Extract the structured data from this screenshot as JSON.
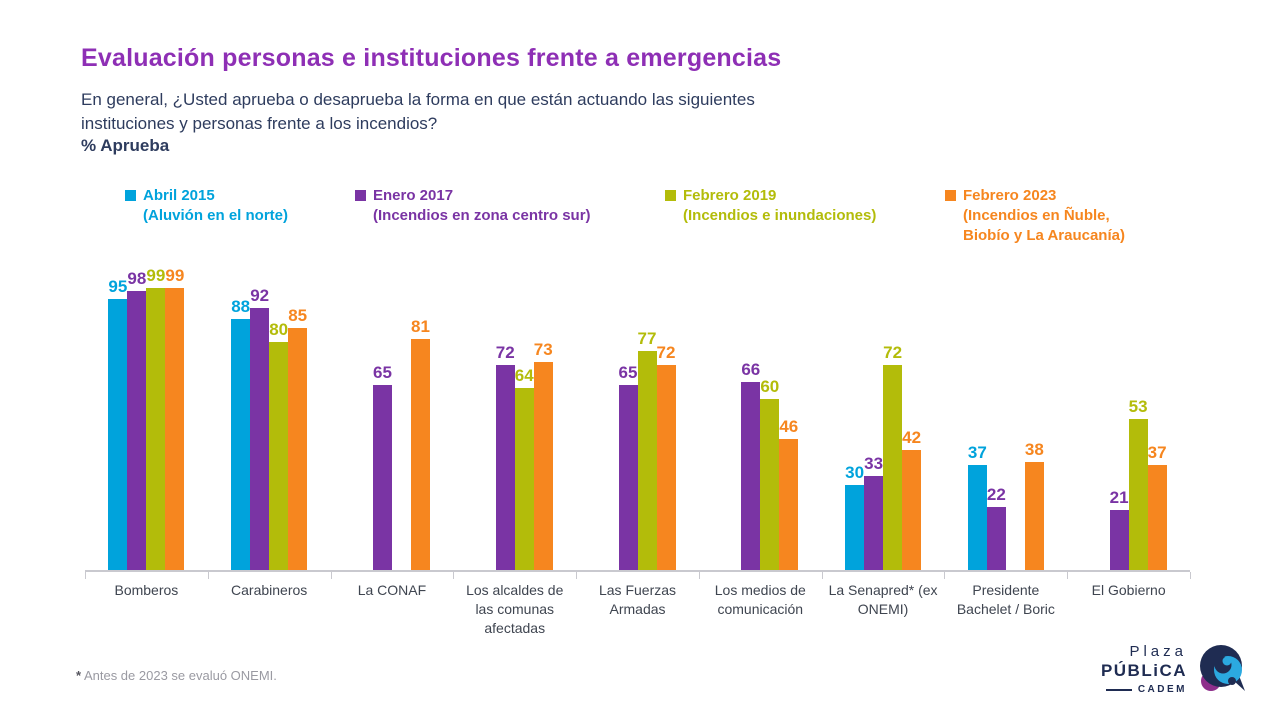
{
  "header": {
    "title": "Evaluación personas e instituciones frente a emergencias",
    "subtitle": "En general, ¿Usted aprueba o desaprueba la forma en que están actuando las siguientes\ninstituciones y personas frente a los incendios?",
    "metric_label": "% Aprueba"
  },
  "colors": {
    "title_purple": "#8E2FB5",
    "text_navy": "#2E3C5E",
    "axis_gray": "#C9C9CF",
    "category_label": "#3F4550",
    "footnote_gray": "#9A9AA2",
    "logo_navy": "#1F2C52",
    "logo_cyan": "#2BA9E0",
    "logo_purple": "#8E2F8B"
  },
  "chart_data": {
    "type": "bar",
    "title": "Evaluación personas e instituciones frente a emergencias",
    "subtitle": "En general, ¿Usted aprueba o desaprueba la forma en que están actuando las siguientes instituciones y personas frente a los incendios?",
    "ylabel": "% Aprueba",
    "ylim": [
      0,
      100
    ],
    "grid": false,
    "legend_position": "top",
    "categories": [
      "Bomberos",
      "Carabineros",
      "La CONAF",
      "Los alcaldes de las comunas afectadas",
      "Las Fuerzas Armadas",
      "Los medios de comunicación",
      "La Senapred* (ex ONEMI)",
      "Presidente Bachelet / Boric",
      "El Gobierno"
    ],
    "series": [
      {
        "name": "Abril 2015",
        "desc": "(Aluvión en el norte)",
        "color": "#00A3DC",
        "values": [
          95,
          88,
          null,
          null,
          null,
          null,
          30,
          37,
          null
        ]
      },
      {
        "name": "Enero 2017",
        "desc": "(Incendios en zona centro sur)",
        "color": "#7A34A4",
        "values": [
          98,
          92,
          65,
          72,
          65,
          66,
          33,
          22,
          21
        ]
      },
      {
        "name": "Febrero 2019",
        "desc": "(Incendios e inundaciones)",
        "color": "#B3BC0A",
        "values": [
          99,
          80,
          null,
          64,
          77,
          60,
          72,
          null,
          53
        ]
      },
      {
        "name": "Febrero 2023",
        "desc": "(Incendios en Ñuble,\nBiobío y La Araucanía)",
        "color": "#F6861F",
        "values": [
          99,
          85,
          81,
          73,
          72,
          46,
          42,
          38,
          37
        ]
      }
    ]
  },
  "footnote": {
    "marker": "*",
    "text": " Antes de 2023 se evaluó ONEMI."
  },
  "logo": {
    "line1": "Plaza",
    "line2": "PÚBLiCA",
    "line3": "CADEM"
  }
}
